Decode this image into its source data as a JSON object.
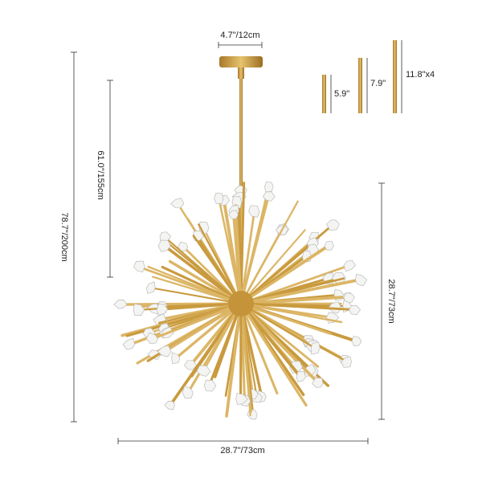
{
  "dimensions": {
    "canopy_width": "4.7\"/12cm",
    "drop_height": "61.0\"/155cm",
    "overall_height": "78.7\"/200cm",
    "body_height": "28.7\"/73cm",
    "body_width": "28.7\"/73cm",
    "rods": [
      "5.9\"",
      "7.9\"",
      "11.8\"x4"
    ]
  }
}
